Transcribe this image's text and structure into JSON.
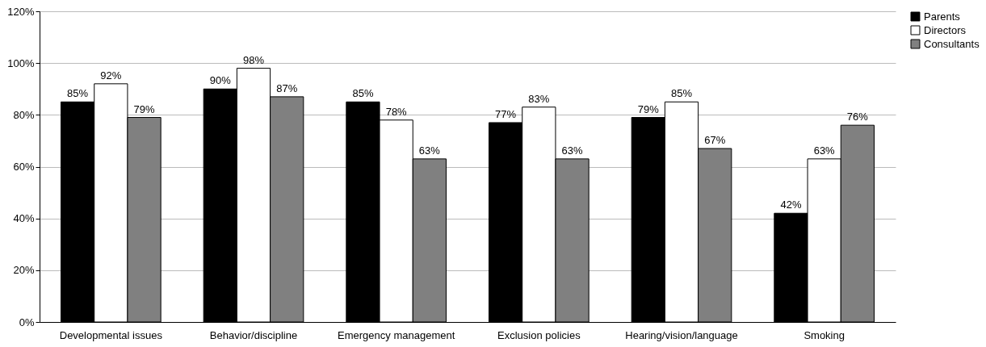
{
  "chart_data": {
    "type": "bar",
    "categories": [
      "Developmental issues",
      "Behavior/discipline",
      "Emergency management",
      "Exclusion policies",
      "Hearing/vision/language",
      "Smoking"
    ],
    "series": [
      {
        "name": "Parents",
        "color": "#000000",
        "values": [
          85,
          90,
          85,
          77,
          79,
          42
        ],
        "value_labels": [
          "85%",
          "90%",
          "85%",
          "77%",
          "79%",
          "42%"
        ]
      },
      {
        "name": "Directors",
        "color": "#ffffff",
        "values": [
          92,
          98,
          78,
          83,
          85,
          63
        ],
        "value_labels": [
          "92%",
          "98%",
          "78%",
          "83%",
          "85%",
          "63%"
        ]
      },
      {
        "name": "Consultants",
        "color": "#808080",
        "values": [
          79,
          87,
          63,
          63,
          67,
          76
        ],
        "value_labels": [
          "79%",
          "87%",
          "63%",
          "63%",
          "67%",
          "76%"
        ]
      }
    ],
    "ylim": [
      0,
      120
    ],
    "yticks": [
      {
        "value": 0,
        "label": "0%"
      },
      {
        "value": 20,
        "label": "20%"
      },
      {
        "value": 40,
        "label": "40%"
      },
      {
        "value": 60,
        "label": "60%"
      },
      {
        "value": 80,
        "label": "80%"
      },
      {
        "value": 100,
        "label": "100%"
      },
      {
        "value": 120,
        "label": "120%"
      }
    ],
    "grid": "y",
    "legend": "right"
  }
}
